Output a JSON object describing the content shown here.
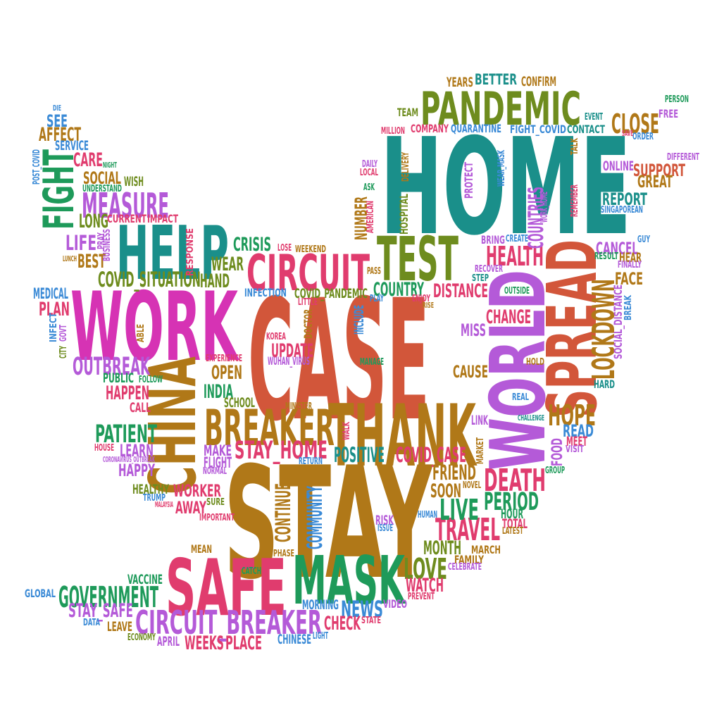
{
  "words": [
    {
      "t": "CASE",
      "c": "#d2563a"
    },
    {
      "t": "STAY",
      "c": "#b07818"
    },
    {
      "t": "HOME",
      "c": "#1a8f8a"
    },
    {
      "t": "WORK",
      "c": "#d633b4"
    },
    {
      "t": "WORLD",
      "c": "#b45ad8"
    },
    {
      "t": "SPREAD",
      "c": "#d2563a"
    },
    {
      "t": "THANK",
      "c": "#b07818"
    },
    {
      "t": "SAFE",
      "c": "#e03c6e"
    },
    {
      "t": "MASK",
      "c": "#1e9a5a"
    },
    {
      "t": "HELP",
      "c": "#1a8f8a"
    },
    {
      "t": "CHINA",
      "c": "#b07818"
    },
    {
      "t": "PANDEMIC",
      "c": "#6e8c1e"
    },
    {
      "t": "TEST",
      "c": "#6e8c1e"
    },
    {
      "t": "CIRCUIT",
      "c": "#e03c6e"
    },
    {
      "t": "BREAKER",
      "c": "#b07818"
    },
    {
      "t": "FIGHT",
      "c": "#1e9a5a"
    },
    {
      "t": "CIRCUIT_BREAKER",
      "c": "#b45ad8"
    },
    {
      "t": "GOVERNMENT",
      "c": "#1e9a5a"
    },
    {
      "t": "MEASURE",
      "c": "#b45ad8"
    },
    {
      "t": "LOCKDOWN",
      "c": "#b07818"
    },
    {
      "t": "DEATH",
      "c": "#e03c6e"
    },
    {
      "t": "TRAVEL",
      "c": "#e03c6e"
    },
    {
      "t": "HOPE",
      "c": "#b07818"
    },
    {
      "t": "CLOSE",
      "c": "#b07818"
    },
    {
      "t": "HEALTH",
      "c": "#e03c6e"
    },
    {
      "t": "OUTBREAK",
      "c": "#b45ad8"
    },
    {
      "t": "PATIENT",
      "c": "#1e9a5a"
    },
    {
      "t": "STAY_HOME",
      "c": "#e03c6e"
    },
    {
      "t": "COVID_SITUATION",
      "c": "#6e8c1e"
    },
    {
      "t": "LIVE",
      "c": "#1e9a5a"
    },
    {
      "t": "PERIOD",
      "c": "#1e9a5a"
    },
    {
      "t": "LOVE",
      "c": "#6e8c1e"
    },
    {
      "t": "POSITIVE",
      "c": "#1a8f8a"
    },
    {
      "t": "COVID_CASE",
      "c": "#e03c6e"
    },
    {
      "t": "COMMUNITY",
      "c": "#3a8ad6"
    },
    {
      "t": "CONTINUE",
      "c": "#b07818"
    },
    {
      "t": "STAY_SAFE",
      "c": "#b45ad8"
    },
    {
      "t": "WEEKS",
      "c": "#e03c6e"
    },
    {
      "t": "PLACE",
      "c": "#e03c6e"
    },
    {
      "t": "NEWS",
      "c": "#3a8ad6"
    },
    {
      "t": "CHECK",
      "c": "#e03c6e"
    },
    {
      "t": "WATCH",
      "c": "#e03c6e"
    },
    {
      "t": "FRIEND",
      "c": "#b07818"
    },
    {
      "t": "SOON",
      "c": "#b07818"
    },
    {
      "t": "MONTH",
      "c": "#6e8c1e"
    },
    {
      "t": "CHANGE",
      "c": "#e03c6e"
    },
    {
      "t": "DISTANCE",
      "c": "#e03c6e"
    },
    {
      "t": "COUNTRY",
      "c": "#1e9a5a"
    },
    {
      "t": "COUNTRIES",
      "c": "#b45ad8"
    },
    {
      "t": "CRISIS",
      "c": "#1e9a5a"
    },
    {
      "t": "WEAR",
      "c": "#6e8c1e"
    },
    {
      "t": "HAND",
      "c": "#6e8c1e"
    },
    {
      "t": "CARE",
      "c": "#e03c6e"
    },
    {
      "t": "SOCIAL",
      "c": "#b07818"
    },
    {
      "t": "WISH",
      "c": "#6e8c1e"
    },
    {
      "t": "LONG",
      "c": "#6e8c1e"
    },
    {
      "t": "LIFE",
      "c": "#b45ad8"
    },
    {
      "t": "BEST",
      "c": "#b07818"
    },
    {
      "t": "AFFECT",
      "c": "#b07818"
    },
    {
      "t": "SEE",
      "c": "#3a8ad6"
    },
    {
      "t": "SERVICE",
      "c": "#3a8ad6"
    },
    {
      "t": "PLAN",
      "c": "#e03c6e"
    },
    {
      "t": "MEDICAL",
      "c": "#3a8ad6"
    },
    {
      "t": "UPDATE",
      "c": "#e03c6e"
    },
    {
      "t": "OPEN",
      "c": "#b07818"
    },
    {
      "t": "INDIA",
      "c": "#1e9a5a"
    },
    {
      "t": "SCHOOL",
      "c": "#6e8c1e"
    },
    {
      "t": "HAPPEN",
      "c": "#e03c6e"
    },
    {
      "t": "PUBLIC",
      "c": "#1e9a5a"
    },
    {
      "t": "CALL",
      "c": "#e03c6e"
    },
    {
      "t": "LEARN",
      "c": "#b45ad8"
    },
    {
      "t": "HAPPY",
      "c": "#b45ad8"
    },
    {
      "t": "MAKE",
      "c": "#b45ad8"
    },
    {
      "t": "FLIGHT",
      "c": "#b45ad8"
    },
    {
      "t": "WORKER",
      "c": "#e03c6e"
    },
    {
      "t": "AWAY",
      "c": "#e03c6e"
    },
    {
      "t": "HEALTHY",
      "c": "#6e8c1e"
    },
    {
      "t": "REPORT",
      "c": "#1a8f8a"
    },
    {
      "t": "SUPPORT",
      "c": "#d2563a"
    },
    {
      "t": "GREAT",
      "c": "#b07818"
    },
    {
      "t": "ONLINE",
      "c": "#b45ad8"
    },
    {
      "t": "CANCEL",
      "c": "#b45ad8"
    },
    {
      "t": "FACE",
      "c": "#b07818"
    },
    {
      "t": "HEAR",
      "c": "#b07818"
    },
    {
      "t": "MISS",
      "c": "#b45ad8"
    },
    {
      "t": "CAUSE",
      "c": "#b07818"
    },
    {
      "t": "READ",
      "c": "#3a8ad6"
    },
    {
      "t": "MEET",
      "c": "#e03c6e"
    },
    {
      "t": "FOOD",
      "c": "#b45ad8"
    },
    {
      "t": "LINK",
      "c": "#b45ad8"
    },
    {
      "t": "HOUR",
      "c": "#1e9a5a"
    },
    {
      "t": "TOTAL",
      "c": "#e03c6e"
    },
    {
      "t": "RISK",
      "c": "#b45ad8"
    },
    {
      "t": "VACCINE",
      "c": "#1e9a5a"
    },
    {
      "t": "GLOBAL",
      "c": "#3a8ad6"
    },
    {
      "t": "LEAVE",
      "c": "#b07818"
    },
    {
      "t": "APRIL",
      "c": "#b45ad8"
    },
    {
      "t": "CHINESE",
      "c": "#3a8ad6"
    },
    {
      "t": "MORNING",
      "c": "#3a8ad6"
    },
    {
      "t": "VIDEO",
      "c": "#b45ad8"
    },
    {
      "t": "MEAN",
      "c": "#b07818"
    },
    {
      "t": "BETTER",
      "c": "#1a8f8a"
    },
    {
      "t": "YEARS",
      "c": "#b07818"
    },
    {
      "t": "CONFIRM",
      "c": "#b07818"
    },
    {
      "t": "QUARANTINE",
      "c": "#3a8ad6"
    },
    {
      "t": "FIGHT_COVID",
      "c": "#3a8ad6"
    },
    {
      "t": "CONTACT",
      "c": "#1a8f8a"
    },
    {
      "t": "COMPANY",
      "c": "#e03c6e"
    },
    {
      "t": "TEAM",
      "c": "#6e8c1e"
    },
    {
      "t": "BRING",
      "c": "#b45ad8"
    },
    {
      "t": "FREE",
      "c": "#b45ad8"
    },
    {
      "t": "INFECTION",
      "c": "#3a8ad6"
    },
    {
      "t": "COVID_PANDEMIC",
      "c": "#6e8c1e"
    },
    {
      "t": "IMPACT",
      "c": "#e03c6e"
    },
    {
      "t": "CURRENT",
      "c": "#e03c6e"
    },
    {
      "t": "NUMBER",
      "c": "#b07818"
    },
    {
      "t": "HOSPITAL",
      "c": "#6e8c1e"
    },
    {
      "t": "MARCH",
      "c": "#b07818"
    },
    {
      "t": "FAMILY",
      "c": "#b07818"
    },
    {
      "t": "INCLUDE",
      "c": "#3a8ad6"
    },
    {
      "t": "DOCTOR",
      "c": "#b07818"
    },
    {
      "t": "PROTECT",
      "c": "#b45ad8"
    },
    {
      "t": "INFECT",
      "c": "#3a8ad6"
    },
    {
      "t": "RESULT",
      "c": "#1e9a5a"
    },
    {
      "t": "SOCIAL_DISTANCE",
      "c": "#b45ad8"
    },
    {
      "t": "WUHAN_VIRUS",
      "c": "#b45ad8"
    },
    {
      "t": "MARKET",
      "c": "#b07818"
    },
    {
      "t": "PREVENT",
      "c": "#e03c6e"
    },
    {
      "t": "CELEBRATE",
      "c": "#b45ad8"
    },
    {
      "t": "LATEST",
      "c": "#b07818"
    },
    {
      "t": "ISSUE",
      "c": "#3a8ad6"
    },
    {
      "t": "HUMAN",
      "c": "#3a8ad6"
    },
    {
      "t": "NOVEL",
      "c": "#b07818"
    },
    {
      "t": "GROUP",
      "c": "#1e9a5a"
    },
    {
      "t": "HARD",
      "c": "#1a8f8a"
    },
    {
      "t": "BREAK",
      "c": "#3a8ad6"
    },
    {
      "t": "FINALLY",
      "c": "#b45ad8"
    },
    {
      "t": "DAILY",
      "c": "#b45ad8"
    },
    {
      "t": "LOCAL",
      "c": "#e03c6e"
    },
    {
      "t": "ASK",
      "c": "#1e9a5a"
    },
    {
      "t": "AMERICAN",
      "c": "#e03c6e"
    },
    {
      "t": "DELIVERY",
      "c": "#b07818"
    },
    {
      "t": "WEAR_MASK",
      "c": "#3a8ad6"
    },
    {
      "t": "WORK_HOME",
      "c": "#b45ad8"
    },
    {
      "t": "REMEMBER",
      "c": "#e03c6e"
    },
    {
      "t": "TALK",
      "c": "#b07818"
    },
    {
      "t": "EVENT",
      "c": "#1a8f8a"
    },
    {
      "t": "MILLION",
      "c": "#e03c6e"
    },
    {
      "t": "SINGAPOREAN",
      "c": "#3a8ad6"
    },
    {
      "t": "DIFFERENT",
      "c": "#b45ad8"
    },
    {
      "t": "PERSON",
      "c": "#1e9a5a"
    },
    {
      "t": "ORDER",
      "c": "#3a8ad6"
    },
    {
      "t": "SAVE",
      "c": "#e03c6e"
    },
    {
      "t": "GUY",
      "c": "#3a8ad6"
    },
    {
      "t": "CREATE",
      "c": "#3a8ad6"
    },
    {
      "t": "RECOVER",
      "c": "#b45ad8"
    },
    {
      "t": "STEP",
      "c": "#1a8f8a"
    },
    {
      "t": "OUTSIDE",
      "c": "#1e9a5a"
    },
    {
      "t": "PASS",
      "c": "#b07818"
    },
    {
      "t": "PLAY",
      "c": "#3a8ad6"
    },
    {
      "t": "ENJOY",
      "c": "#e03c6e"
    },
    {
      "t": "RISE",
      "c": "#b07818"
    },
    {
      "t": "LITTLE",
      "c": "#e03c6e"
    },
    {
      "t": "LOSE",
      "c": "#e03c6e"
    },
    {
      "t": "WEEKEND",
      "c": "#b07818"
    },
    {
      "t": "RESPONSE",
      "c": "#e03c6e"
    },
    {
      "t": "KOREA",
      "c": "#e03c6e"
    },
    {
      "t": "EXPERIENCE",
      "c": "#e03c6e"
    },
    {
      "t": "MANAGE",
      "c": "#1e9a5a"
    },
    {
      "t": "MINISTER",
      "c": "#b07818"
    },
    {
      "t": "WALK",
      "c": "#e03c6e"
    },
    {
      "t": "RETURN",
      "c": "#3a8ad6"
    },
    {
      "t": "NORMAL",
      "c": "#b45ad8"
    },
    {
      "t": "SURE",
      "c": "#6e8c1e"
    },
    {
      "t": "IMPORTANT",
      "c": "#e03c6e"
    },
    {
      "t": "TRUMP",
      "c": "#3a8ad6"
    },
    {
      "t": "MALAYSIA",
      "c": "#e03c6e"
    },
    {
      "t": "HOUSE",
      "c": "#e03c6e"
    },
    {
      "t": "CORONAVIRUS_OUTBREAK",
      "c": "#b45ad8"
    },
    {
      "t": "FOLLOW",
      "c": "#1e9a5a"
    },
    {
      "t": "ABLE",
      "c": "#b07818"
    },
    {
      "t": "GOVT",
      "c": "#b45ad8"
    },
    {
      "t": "CITY",
      "c": "#6e8c1e"
    },
    {
      "t": "CATCH",
      "c": "#1e9a5a"
    },
    {
      "t": "PHASE",
      "c": "#b07818"
    },
    {
      "t": "DATA",
      "c": "#3a8ad6"
    },
    {
      "t": "ECONOMY",
      "c": "#6e8c1e"
    },
    {
      "t": "LIGHT",
      "c": "#3a8ad6"
    },
    {
      "t": "STATE",
      "c": "#e03c6e"
    },
    {
      "t": "REAL",
      "c": "#3a8ad6"
    },
    {
      "t": "HOLD",
      "c": "#b07818"
    },
    {
      "t": "CHALLENGE",
      "c": "#1a8f8a"
    },
    {
      "t": "VISIT",
      "c": "#b45ad8"
    },
    {
      "t": "POST_COVID",
      "c": "#3a8ad6"
    },
    {
      "t": "DIE",
      "c": "#3a8ad6"
    },
    {
      "t": "NIGHT",
      "c": "#1e9a5a"
    },
    {
      "t": "UNDERSTAND",
      "c": "#1e9a5a"
    },
    {
      "t": "PRAY",
      "c": "#b45ad8"
    },
    {
      "t": "BUSINESS",
      "c": "#b45ad8"
    },
    {
      "t": "LUNCH",
      "c": "#b07818"
    }
  ]
}
